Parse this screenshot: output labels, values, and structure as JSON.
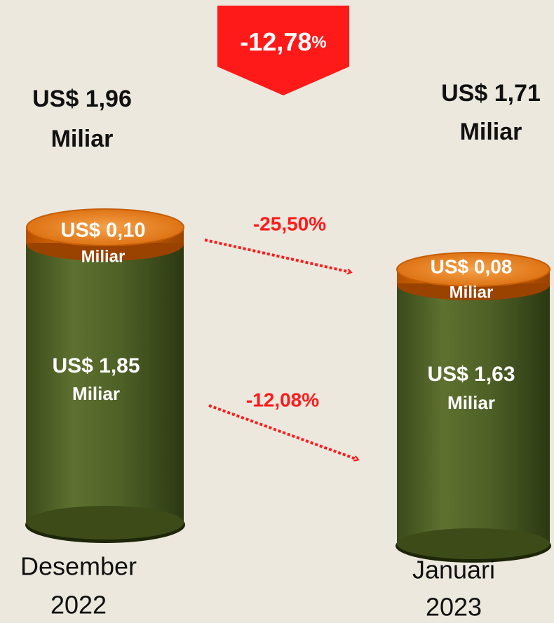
{
  "badge": {
    "value": "-12,78",
    "unit": "%"
  },
  "columns": [
    {
      "total": [
        "US$ 1,96",
        "Miliar"
      ],
      "top": [
        "US$ 0,10",
        "Miliar"
      ],
      "bottom": [
        "US$ 1,85",
        "Miliar"
      ],
      "period": [
        "Desember",
        "2022"
      ]
    },
    {
      "total": [
        "US$ 1,71",
        "Miliar"
      ],
      "top": [
        "US$ 0,08",
        "Miliar"
      ],
      "bottom": [
        "US$ 1,63",
        "Miliar"
      ],
      "period": [
        "Januari",
        "2023"
      ]
    }
  ],
  "changes": [
    "-25,50%",
    "-12,08%"
  ]
}
